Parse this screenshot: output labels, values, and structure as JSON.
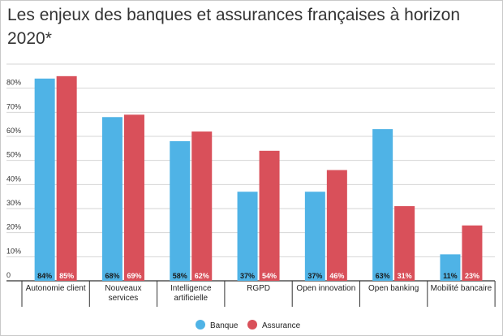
{
  "chart_data": {
    "type": "bar",
    "title": "Les enjeux des banques et assurances françaises à horizon 2020*",
    "categories": [
      [
        "Autonomie client"
      ],
      [
        "Nouveaux",
        "services"
      ],
      [
        "Intelligence",
        "artificielle"
      ],
      [
        "RGPD"
      ],
      [
        "Open innovation"
      ],
      [
        "Open banking"
      ],
      [
        "Mobilité bancaire"
      ]
    ],
    "series": [
      {
        "name": "Banque",
        "color": "#4fb3e6",
        "values": [
          84,
          68,
          58,
          37,
          37,
          63,
          11
        ]
      },
      {
        "name": "Assurance",
        "color": "#d9505a",
        "values": [
          85,
          69,
          62,
          54,
          46,
          31,
          23
        ]
      }
    ],
    "data_labels": [
      [
        "84%",
        "68%",
        "58%",
        "37%",
        "37%",
        "63%",
        "11%"
      ],
      [
        "85%",
        "69%",
        "62%",
        "54%",
        "46%",
        "31%",
        "23%"
      ]
    ],
    "yticks": [
      "0",
      "10%",
      "20%",
      "30%",
      "40%",
      "50%",
      "60%",
      "70%",
      "80%"
    ],
    "ylim": [
      0,
      90
    ],
    "grid": true,
    "legend": "bottom-center"
  }
}
